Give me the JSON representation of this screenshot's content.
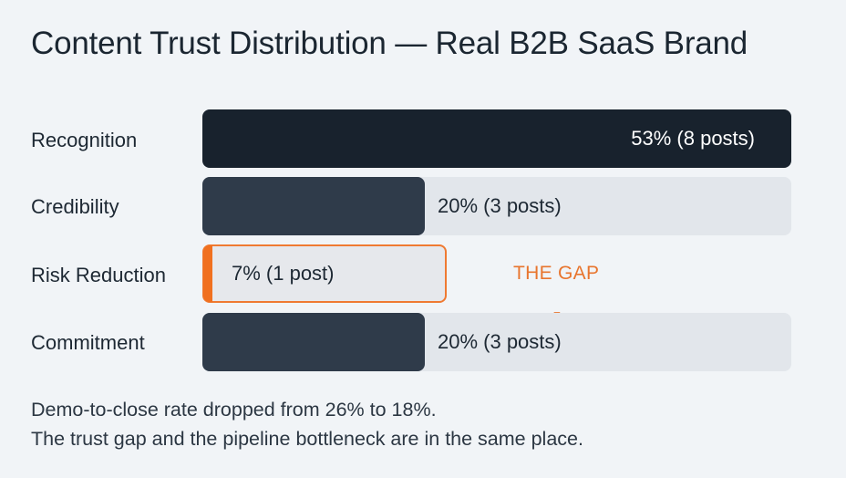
{
  "chart_data": {
    "type": "bar",
    "orientation": "horizontal",
    "title": "Content Trust Distribution — Real B2B SaaS Brand",
    "categories": [
      "Recognition",
      "Credibility",
      "Risk Reduction",
      "Commitment"
    ],
    "values": [
      53,
      20,
      7,
      20
    ],
    "value_labels": [
      "53% (8 posts)",
      "20% (3 posts)",
      "7% (1 post)",
      "20% (3 posts)"
    ],
    "posts": [
      8,
      3,
      1,
      3
    ],
    "xlim": [
      0,
      53
    ],
    "unit": "%",
    "grid": false,
    "annotation": "THE GAP",
    "highlight_category": "Risk Reduction",
    "colors": {
      "recognition": "#18222d",
      "default": "#2f3b4a",
      "track": "#e2e6eb",
      "highlight": "#ef7a32"
    }
  },
  "notes": {
    "line1": "Demo-to-close rate dropped from 26% to 18%.",
    "line2": "The trust gap and the pipeline bottleneck are in the same place."
  }
}
